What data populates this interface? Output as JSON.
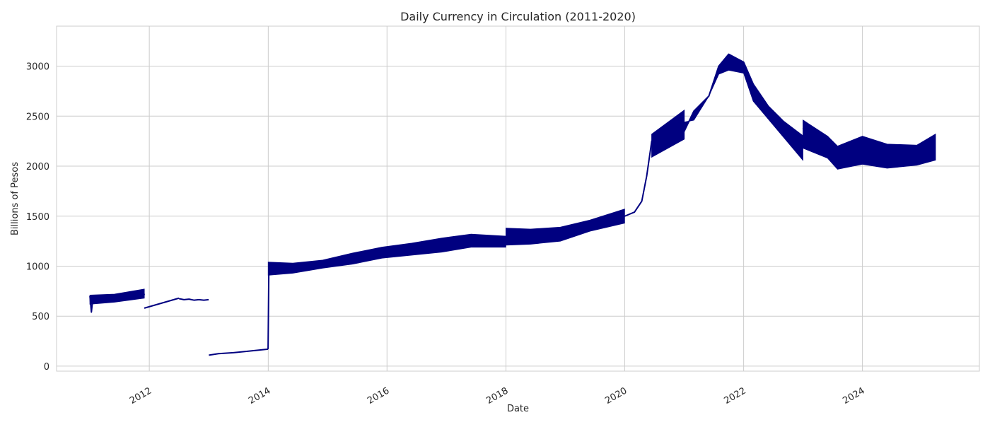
{
  "chart_data": {
    "type": "line",
    "title": "Daily Currency in Circulation (2011-2020)",
    "xlabel": "Date",
    "ylabel": "Billions of Pesos",
    "xlim": [
      "2010-06-10",
      "2025-12-20"
    ],
    "ylim": [
      -50,
      3400
    ],
    "x_ticks": [
      {
        "value": "2012-01-01",
        "label": "2012"
      },
      {
        "value": "2014-01-01",
        "label": "2014"
      },
      {
        "value": "2016-01-01",
        "label": "2016"
      },
      {
        "value": "2018-01-01",
        "label": "2018"
      },
      {
        "value": "2020-01-01",
        "label": "2020"
      },
      {
        "value": "2022-01-01",
        "label": "2022"
      },
      {
        "value": "2024-01-01",
        "label": "2024"
      }
    ],
    "y_ticks": [
      0,
      500,
      1000,
      1500,
      2000,
      2500,
      3000
    ],
    "grid": true,
    "legend": "none",
    "colors": {
      "series": "#000080",
      "grid": "#cccccc",
      "axes": "#cccccc"
    },
    "series": [
      {
        "segments": [
          {
            "x": [
              "2011-01-01",
              "2011-01-10",
              "2011-01-20",
              "2011-02-01",
              "2011-03-01",
              "2011-04-01",
              "2011-05-01",
              "2011-06-01",
              "2011-07-01",
              "2011-08-01",
              "2011-09-01",
              "2011-10-01",
              "2011-11-01",
              "2011-11-25",
              "2011-12-01"
            ],
            "y": [
              700,
              540,
              690,
              640,
              680,
              650,
              690,
              660,
              690,
              670,
              700,
              690,
              720,
              760,
              710
            ]
          },
          {
            "x": [
              "2011-12-01",
              "2012-07-01"
            ],
            "y": [
              580,
              680
            ]
          },
          {
            "x": [
              "2012-07-01",
              "2012-08-01",
              "2012-09-01",
              "2012-10-01",
              "2012-11-01",
              "2012-12-01",
              "2012-12-31"
            ],
            "y": [
              675,
              665,
              670,
              660,
              665,
              660,
              665
            ]
          },
          {
            "x": [
              "2013-01-01",
              "2013-03-01",
              "2013-06-01",
              "2013-09-01",
              "2013-12-31"
            ],
            "y": [
              110,
              125,
              135,
              150,
              170
            ]
          },
          {
            "x": [
              "2013-12-31",
              "2014-01-05",
              "2014-03-01",
              "2014-06-01",
              "2014-09-01",
              "2014-12-01",
              "2015-03-01",
              "2015-06-01",
              "2015-09-01",
              "2015-12-01",
              "2016-03-01",
              "2016-06-01",
              "2016-09-01",
              "2016-12-01",
              "2017-03-01",
              "2017-06-01",
              "2017-09-01",
              "2017-12-31"
            ],
            "y": [
              170,
              1000,
              960,
              970,
              990,
              1040,
              1060,
              1080,
              1100,
              1150,
              1160,
              1180,
              1200,
              1250,
              1260,
              1250,
              1250,
              1250
            ]
          },
          {
            "x": [
              "2018-01-01",
              "2018-04-01",
              "2018-07-01",
              "2018-10-01",
              "2019-01-01",
              "2019-04-01",
              "2019-07-01",
              "2019-10-01",
              "2020-01-01",
              "2020-03-01",
              "2020-04-15",
              "2020-05-15",
              "2020-06-15",
              "2021-01-01",
              "2021-03-01",
              "2021-06-01",
              "2021-08-01",
              "2021-10-01",
              "2022-01-01",
              "2022-03-01",
              "2022-06-01",
              "2022-09-01",
              "2022-12-31"
            ],
            "y": [
              1280,
              1290,
              1270,
              1300,
              1320,
              1380,
              1420,
              1470,
              1500,
              1540,
              1650,
              1900,
              2250,
              2350,
              2550,
              2700,
              3000,
              3120,
              3040,
              2820,
              2600,
              2450,
              2300
            ]
          },
          {
            "x": [
              "2023-01-01",
              "2023-03-01",
              "2023-06-01",
              "2023-08-01",
              "2023-10-01",
              "2024-01-01",
              "2024-03-01",
              "2024-06-01",
              "2024-09-01",
              "2024-12-01",
              "2025-02-01",
              "2025-03-25"
            ],
            "y": [
              2380,
              2220,
              2180,
              2070,
              2120,
              2180,
              2120,
              2090,
              2100,
              2120,
              2200,
              2180
            ]
          }
        ],
        "bands": [
          {
            "x": [
              "2011-01-01",
              "2011-06-01",
              "2011-12-01"
            ],
            "low": [
              620,
              640,
              680
            ],
            "high": [
              710,
              720,
              770
            ]
          },
          {
            "x": [
              "2014-01-01",
              "2014-06-01",
              "2014-12-01",
              "2015-06-01",
              "2015-12-01",
              "2016-06-01",
              "2016-12-01",
              "2017-06-01",
              "2017-12-31"
            ],
            "low": [
              910,
              930,
              980,
              1020,
              1080,
              1110,
              1140,
              1190,
              1190
            ],
            "high": [
              1040,
              1030,
              1060,
              1130,
              1190,
              1230,
              1280,
              1320,
              1300
            ]
          },
          {
            "x": [
              "2018-01-01",
              "2018-06-01",
              "2018-12-01",
              "2019-06-01",
              "2019-12-31"
            ],
            "low": [
              1210,
              1220,
              1250,
              1350,
              1430
            ],
            "high": [
              1380,
              1370,
              1390,
              1460,
              1570
            ]
          },
          {
            "x": [
              "2020-06-15",
              "2021-01-01"
            ],
            "low": [
              2090,
              2270
            ],
            "high": [
              2320,
              2560
            ]
          },
          {
            "x": [
              "2021-01-01",
              "2021-03-01",
              "2021-06-01",
              "2021-08-01",
              "2021-10-01",
              "2022-01-01",
              "2022-03-01",
              "2022-12-31"
            ],
            "low": [
              2440,
              2460,
              2700,
              2920,
              2960,
              2930,
              2650,
              2060
            ]
          },
          {
            "x": [
              "2023-01-01",
              "2023-06-01",
              "2023-08-01",
              "2024-01-01",
              "2024-06-01",
              "2024-12-01",
              "2025-03-25"
            ],
            "low": [
              2180,
              2080,
              1970,
              2020,
              1980,
              2010,
              2060
            ],
            "high": [
              2460,
              2300,
              2200,
              2300,
              2220,
              2210,
              2320
            ]
          }
        ]
      }
    ]
  }
}
